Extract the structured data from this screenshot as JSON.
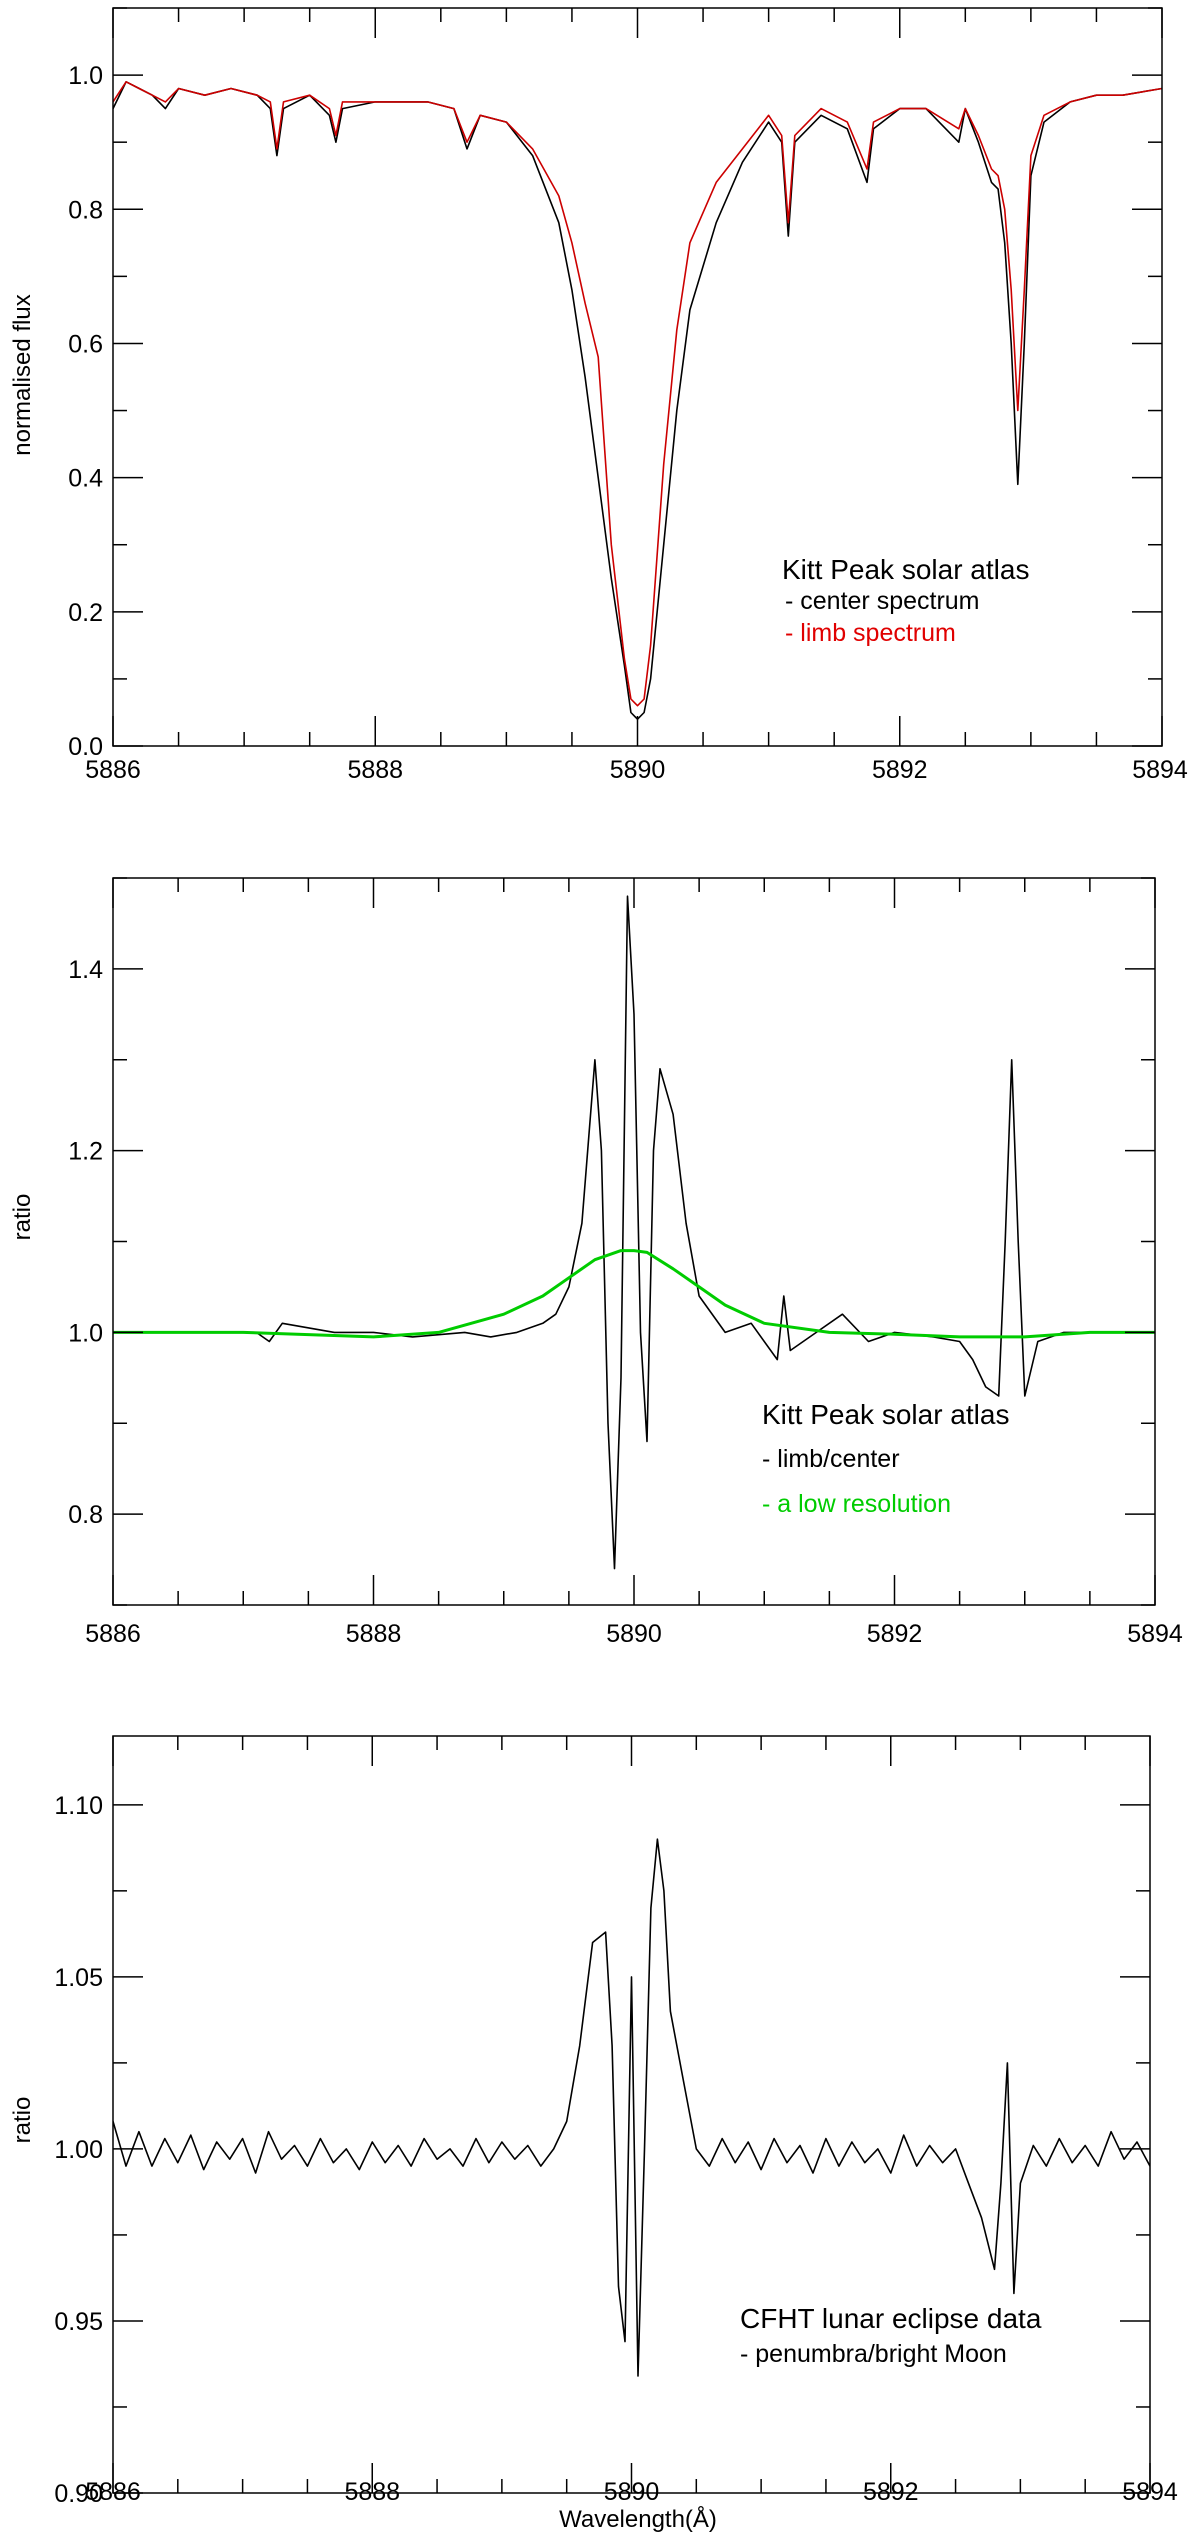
{
  "chart_data": [
    {
      "type": "line",
      "title": "",
      "xlabel": "",
      "ylabel": "normalised flux",
      "xlim": [
        5886,
        5894
      ],
      "ylim": [
        0.0,
        1.1
      ],
      "xticks": [
        "5886",
        "5888",
        "5890",
        "5892",
        "5894"
      ],
      "yticks": [
        "0.0",
        "0.2",
        "0.4",
        "0.6",
        "0.8",
        "1.0"
      ],
      "ytick_values": [
        0.0,
        0.2,
        0.4,
        0.6,
        0.8,
        1.0
      ],
      "grid": false,
      "legend": {
        "placement": "bottom-right",
        "title": "Kitt Peak solar atlas",
        "entries": [
          {
            "label": "- center spectrum",
            "color": "#000000"
          },
          {
            "label": "- limb spectrum",
            "color": "#e00000"
          }
        ]
      },
      "series": [
        {
          "color": "#000000",
          "x": [
            5886.0,
            5886.1,
            5886.2,
            5886.3,
            5886.4,
            5886.5,
            5886.7,
            5886.9,
            5887.1,
            5887.2,
            5887.25,
            5887.3,
            5887.5,
            5887.65,
            5887.7,
            5887.75,
            5888.0,
            5888.4,
            5888.6,
            5888.7,
            5888.8,
            5889.0,
            5889.2,
            5889.4,
            5889.5,
            5889.6,
            5889.7,
            5889.8,
            5889.9,
            5889.95,
            5890.0,
            5890.05,
            5890.1,
            5890.2,
            5890.3,
            5890.4,
            5890.6,
            5890.8,
            5891.0,
            5891.1,
            5891.15,
            5891.2,
            5891.4,
            5891.6,
            5891.75,
            5891.8,
            5892.0,
            5892.2,
            5892.45,
            5892.5,
            5892.6,
            5892.7,
            5892.75,
            5892.8,
            5892.85,
            5892.9,
            5892.95,
            5893.0,
            5893.1,
            5893.3,
            5893.5,
            5893.7,
            5894.0
          ],
          "y": [
            0.95,
            0.99,
            0.98,
            0.97,
            0.95,
            0.98,
            0.97,
            0.98,
            0.97,
            0.95,
            0.88,
            0.95,
            0.97,
            0.94,
            0.9,
            0.95,
            0.96,
            0.96,
            0.95,
            0.89,
            0.94,
            0.93,
            0.88,
            0.78,
            0.68,
            0.55,
            0.4,
            0.25,
            0.12,
            0.05,
            0.04,
            0.05,
            0.1,
            0.3,
            0.5,
            0.65,
            0.78,
            0.87,
            0.93,
            0.9,
            0.76,
            0.9,
            0.94,
            0.92,
            0.84,
            0.92,
            0.95,
            0.95,
            0.9,
            0.95,
            0.9,
            0.84,
            0.83,
            0.75,
            0.6,
            0.39,
            0.6,
            0.85,
            0.93,
            0.96,
            0.97,
            0.97,
            0.98
          ]
        },
        {
          "color": "#cc0000",
          "x": [
            5886.0,
            5886.1,
            5886.2,
            5886.3,
            5886.4,
            5886.5,
            5886.7,
            5886.9,
            5887.1,
            5887.2,
            5887.25,
            5887.3,
            5887.5,
            5887.65,
            5887.7,
            5887.75,
            5888.0,
            5888.4,
            5888.6,
            5888.7,
            5888.8,
            5889.0,
            5889.2,
            5889.4,
            5889.5,
            5889.6,
            5889.7,
            5889.8,
            5889.9,
            5889.95,
            5890.0,
            5890.05,
            5890.1,
            5890.2,
            5890.3,
            5890.4,
            5890.6,
            5890.8,
            5891.0,
            5891.1,
            5891.15,
            5891.2,
            5891.4,
            5891.6,
            5891.75,
            5891.8,
            5892.0,
            5892.2,
            5892.45,
            5892.5,
            5892.6,
            5892.7,
            5892.75,
            5892.8,
            5892.85,
            5892.9,
            5892.95,
            5893.0,
            5893.1,
            5893.3,
            5893.5,
            5893.7,
            5894.0
          ],
          "y": [
            0.96,
            0.99,
            0.98,
            0.97,
            0.96,
            0.98,
            0.97,
            0.98,
            0.97,
            0.96,
            0.89,
            0.96,
            0.97,
            0.95,
            0.91,
            0.96,
            0.96,
            0.96,
            0.95,
            0.9,
            0.94,
            0.93,
            0.89,
            0.82,
            0.75,
            0.66,
            0.58,
            0.3,
            0.13,
            0.07,
            0.06,
            0.07,
            0.15,
            0.42,
            0.62,
            0.75,
            0.84,
            0.89,
            0.94,
            0.91,
            0.78,
            0.91,
            0.95,
            0.93,
            0.86,
            0.93,
            0.95,
            0.95,
            0.92,
            0.95,
            0.91,
            0.86,
            0.85,
            0.8,
            0.68,
            0.5,
            0.68,
            0.88,
            0.94,
            0.96,
            0.97,
            0.97,
            0.98
          ]
        }
      ]
    },
    {
      "type": "line",
      "title": "",
      "xlabel": "",
      "ylabel": "ratio",
      "xlim": [
        5886,
        5894
      ],
      "ylim": [
        0.7,
        1.5
      ],
      "xticks": [
        "5886",
        "5888",
        "5890",
        "5892",
        "5894"
      ],
      "yticks": [
        "0.8",
        "1.0",
        "1.2",
        "1.4"
      ],
      "ytick_values": [
        0.8,
        1.0,
        1.2,
        1.4
      ],
      "grid": false,
      "legend": {
        "placement": "bottom-right",
        "title": "Kitt Peak solar atlas",
        "entries": [
          {
            "label": "- limb/center",
            "color": "#000000"
          },
          {
            "label": "- a low resolution",
            "color": "#00cc00"
          }
        ]
      },
      "series": [
        {
          "color": "#000000",
          "x": [
            5886.0,
            5887.1,
            5887.2,
            5887.3,
            5887.7,
            5888.0,
            5888.3,
            5888.7,
            5888.9,
            5889.1,
            5889.3,
            5889.4,
            5889.5,
            5889.6,
            5889.7,
            5889.75,
            5889.8,
            5889.85,
            5889.9,
            5889.95,
            5890.0,
            5890.05,
            5890.1,
            5890.15,
            5890.2,
            5890.3,
            5890.4,
            5890.5,
            5890.7,
            5890.9,
            5891.1,
            5891.15,
            5891.2,
            5891.4,
            5891.6,
            5891.8,
            5892.0,
            5892.3,
            5892.5,
            5892.6,
            5892.7,
            5892.8,
            5892.85,
            5892.9,
            5892.95,
            5893.0,
            5893.1,
            5893.3,
            5893.6,
            5894.0
          ],
          "y": [
            1.0,
            1.0,
            0.99,
            1.01,
            1.0,
            1.0,
            0.995,
            1.0,
            0.995,
            1.0,
            1.01,
            1.02,
            1.05,
            1.12,
            1.3,
            1.2,
            0.9,
            0.74,
            0.95,
            1.48,
            1.35,
            1.0,
            0.88,
            1.2,
            1.29,
            1.24,
            1.12,
            1.04,
            1.0,
            1.01,
            0.97,
            1.04,
            0.98,
            1.0,
            1.02,
            0.99,
            1.0,
            0.995,
            0.99,
            0.97,
            0.94,
            0.93,
            1.1,
            1.3,
            1.1,
            0.93,
            0.99,
            1.0,
            1.0,
            1.0
          ]
        },
        {
          "color": "#00cc00",
          "x": [
            5886.0,
            5887.0,
            5888.0,
            5888.5,
            5889.0,
            5889.3,
            5889.5,
            5889.7,
            5889.9,
            5890.0,
            5890.1,
            5890.3,
            5890.5,
            5890.7,
            5891.0,
            5891.5,
            5892.0,
            5892.5,
            5893.0,
            5893.5,
            5894.0
          ],
          "y": [
            1.0,
            1.0,
            0.995,
            1.0,
            1.02,
            1.04,
            1.06,
            1.08,
            1.09,
            1.09,
            1.088,
            1.07,
            1.05,
            1.03,
            1.01,
            1.0,
            0.998,
            0.995,
            0.995,
            1.0,
            1.0
          ]
        }
      ]
    },
    {
      "type": "line",
      "title": "",
      "xlabel": "Wavelength(Å)",
      "ylabel": "ratio",
      "xlim": [
        5886,
        5894
      ],
      "ylim": [
        0.9,
        1.12
      ],
      "xticks": [
        "5886",
        "5888",
        "5890",
        "5892",
        "5894"
      ],
      "yticks": [
        "0.90",
        "0.95",
        "1.00",
        "1.05",
        "1.10"
      ],
      "ytick_values": [
        0.9,
        0.95,
        1.0,
        1.05,
        1.1
      ],
      "grid": false,
      "legend": {
        "placement": "bottom-right",
        "title": "CFHT lunar eclipse data",
        "entries": [
          {
            "label": "- penumbra/bright Moon",
            "color": "#000000"
          }
        ]
      },
      "series": [
        {
          "color": "#000000",
          "x": [
            5886.0,
            5886.1,
            5886.2,
            5886.3,
            5886.4,
            5886.5,
            5886.6,
            5886.7,
            5886.8,
            5886.9,
            5887.0,
            5887.1,
            5887.2,
            5887.3,
            5887.4,
            5887.5,
            5887.6,
            5887.7,
            5887.8,
            5887.9,
            5888.0,
            5888.1,
            5888.2,
            5888.3,
            5888.4,
            5888.5,
            5888.6,
            5888.7,
            5888.8,
            5888.9,
            5889.0,
            5889.1,
            5889.2,
            5889.3,
            5889.4,
            5889.5,
            5889.6,
            5889.7,
            5889.8,
            5889.85,
            5889.9,
            5889.95,
            5890.0,
            5890.05,
            5890.1,
            5890.15,
            5890.2,
            5890.25,
            5890.3,
            5890.4,
            5890.5,
            5890.6,
            5890.7,
            5890.8,
            5890.9,
            5891.0,
            5891.1,
            5891.2,
            5891.3,
            5891.4,
            5891.5,
            5891.6,
            5891.7,
            5891.8,
            5891.9,
            5892.0,
            5892.1,
            5892.2,
            5892.3,
            5892.4,
            5892.5,
            5892.6,
            5892.7,
            5892.8,
            5892.85,
            5892.9,
            5892.95,
            5893.0,
            5893.1,
            5893.2,
            5893.3,
            5893.4,
            5893.5,
            5893.6,
            5893.7,
            5893.8,
            5893.9,
            5894.0
          ],
          "y": [
            1.008,
            0.995,
            1.005,
            0.995,
            1.003,
            0.996,
            1.004,
            0.994,
            1.002,
            0.997,
            1.003,
            0.993,
            1.005,
            0.997,
            1.001,
            0.995,
            1.003,
            0.996,
            1.0,
            0.994,
            1.002,
            0.996,
            1.001,
            0.995,
            1.003,
            0.997,
            1.0,
            0.995,
            1.003,
            0.996,
            1.002,
            0.997,
            1.001,
            0.995,
            1.0,
            1.008,
            1.03,
            1.06,
            1.063,
            1.03,
            0.96,
            0.944,
            1.05,
            0.934,
            1.0,
            1.07,
            1.09,
            1.075,
            1.04,
            1.02,
            1.0,
            0.995,
            1.003,
            0.996,
            1.002,
            0.994,
            1.003,
            0.996,
            1.001,
            0.993,
            1.003,
            0.995,
            1.002,
            0.996,
            1.0,
            0.993,
            1.004,
            0.995,
            1.001,
            0.996,
            1.0,
            0.99,
            0.98,
            0.965,
            0.99,
            1.025,
            0.958,
            0.99,
            1.001,
            0.995,
            1.003,
            0.996,
            1.001,
            0.995,
            1.005,
            0.997,
            1.002,
            0.995
          ]
        }
      ]
    }
  ]
}
